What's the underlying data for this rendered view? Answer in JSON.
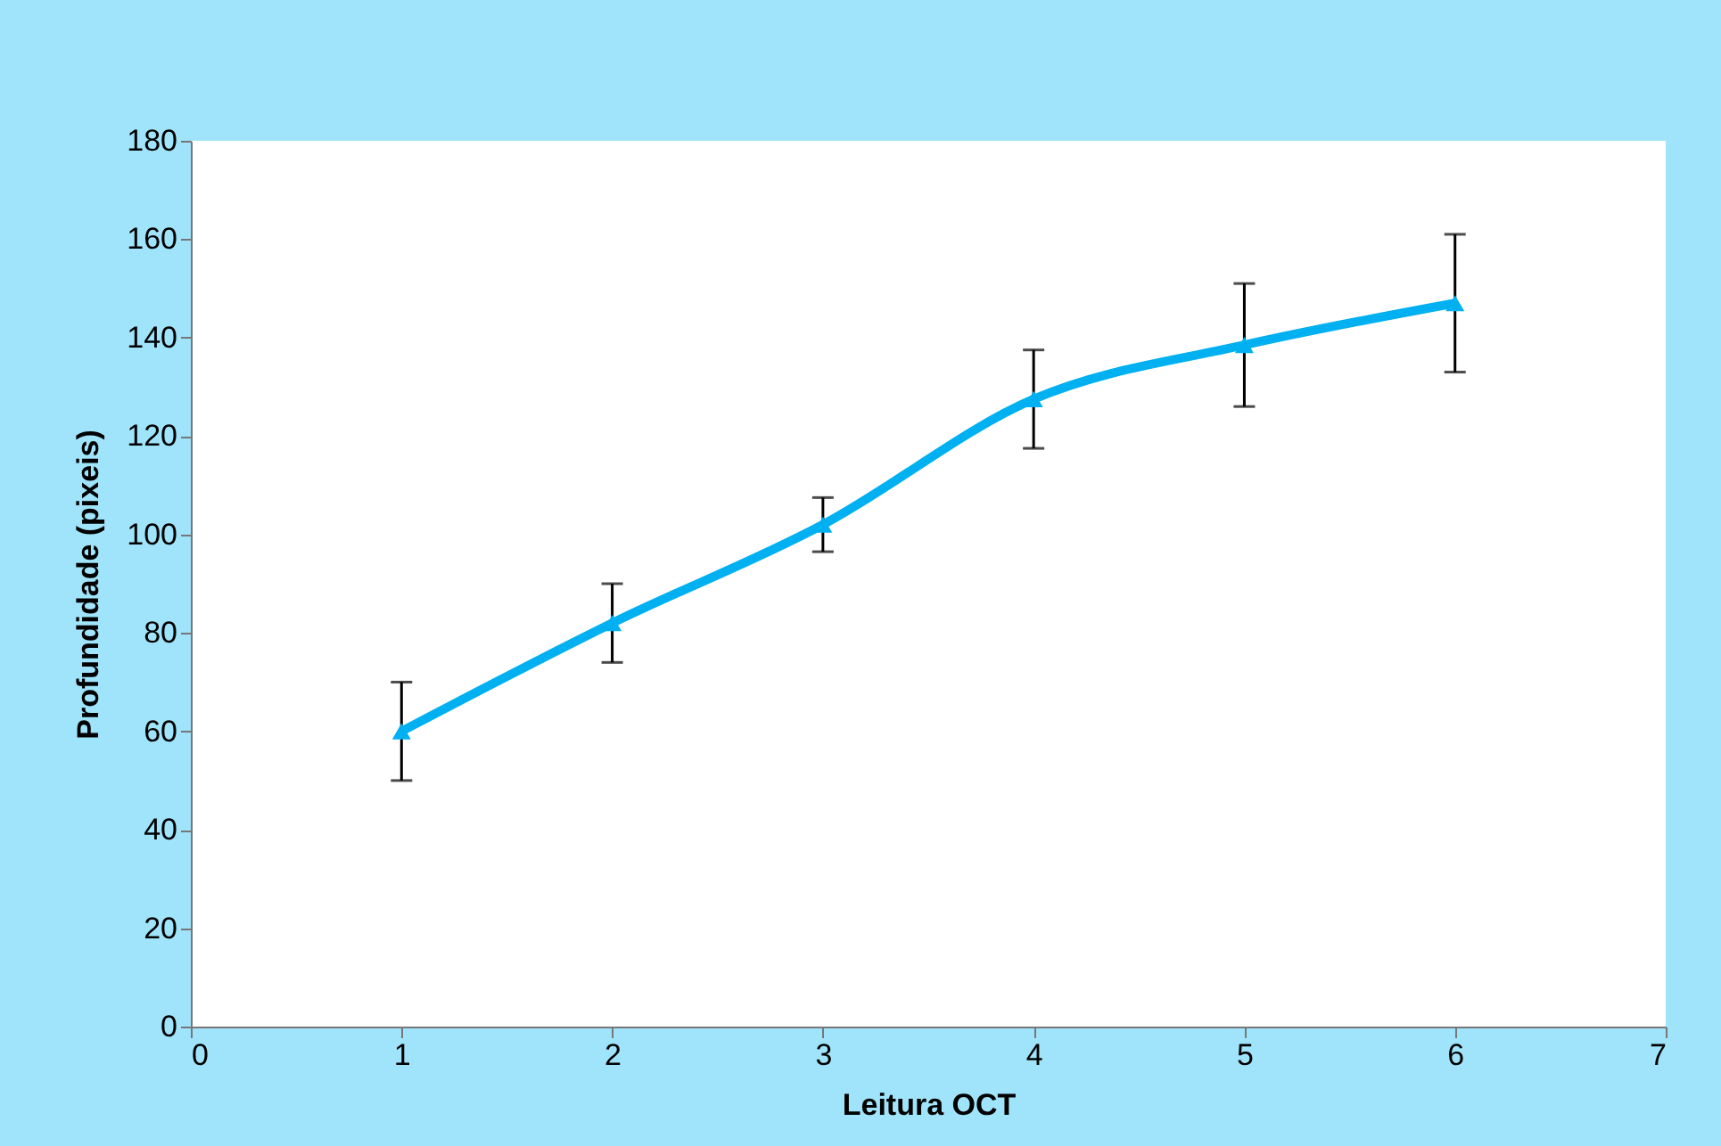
{
  "chart_data": {
    "type": "line",
    "xlabel": "Leitura OCT",
    "ylabel": "Profundidade (pixeis)",
    "x": [
      1,
      2,
      3,
      4,
      5,
      6
    ],
    "values": [
      60,
      82,
      102,
      127.5,
      138.5,
      147
    ],
    "errors": [
      10,
      8,
      5.5,
      10,
      12.5,
      14
    ],
    "color": "#00b0f0",
    "marker": "triangle",
    "line_style": "solid",
    "xlim": [
      0,
      7
    ],
    "xticks": [
      0,
      1,
      2,
      3,
      4,
      5,
      6,
      7
    ],
    "ylim": [
      0,
      180
    ],
    "yticks": [
      0,
      20,
      40,
      60,
      80,
      100,
      120,
      140,
      160,
      180
    ]
  }
}
